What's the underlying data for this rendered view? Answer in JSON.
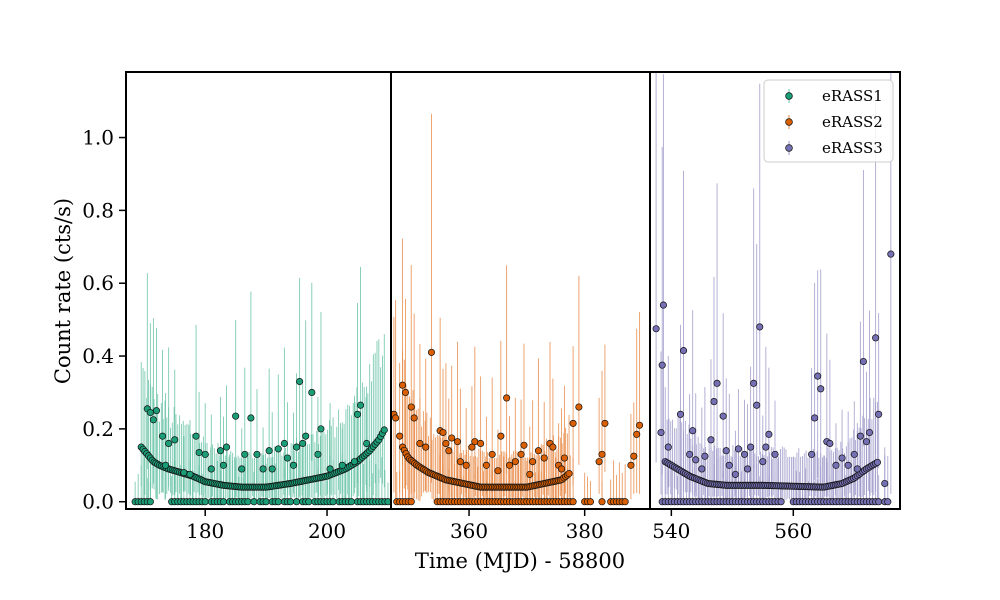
{
  "chart_data": {
    "type": "scatter",
    "title": "",
    "xlabel": "Time (MJD) - 58800",
    "ylabel": "Count rate (cts/s)",
    "ylim": [
      -0.02,
      1.18
    ],
    "yticks": [
      0.0,
      0.2,
      0.4,
      0.6,
      0.8,
      1.0
    ],
    "ytick_labels": [
      "0.0",
      "0.2",
      "0.4",
      "0.6",
      "0.8",
      "1.0"
    ],
    "grid": false,
    "legend": {
      "position": "top-right",
      "entries": [
        "eRASS1",
        "eRASS2",
        "eRASS3"
      ]
    },
    "panels": [
      {
        "series_index": 0,
        "xlim": [
          167,
          210.5
        ],
        "xticks": [
          180,
          200
        ],
        "xtick_labels": [
          "180",
          "200"
        ]
      },
      {
        "series_index": 1,
        "xlim": [
          346.5,
          391.3
        ],
        "xticks": [
          360,
          380
        ],
        "xtick_labels": [
          "360",
          "380"
        ]
      },
      {
        "series_index": 2,
        "xlim": [
          536.5,
          577.5
        ],
        "xticks": [
          540,
          560
        ],
        "xtick_labels": [
          "540",
          "560"
        ]
      }
    ],
    "series": [
      {
        "name": "eRASS1",
        "color": "#1b9e77",
        "errcolor": "#66c2a5",
        "anchors": [
          [
            169.5,
            0.15
          ],
          [
            170.5,
            0.13
          ],
          [
            171.5,
            0.11
          ],
          [
            172.5,
            0.1
          ],
          [
            174.0,
            0.09
          ],
          [
            176.0,
            0.08
          ],
          [
            178.0,
            0.07
          ],
          [
            180.0,
            0.055
          ],
          [
            183.0,
            0.045
          ],
          [
            186.0,
            0.04
          ],
          [
            190.0,
            0.04
          ],
          [
            194.0,
            0.05
          ],
          [
            197.0,
            0.06
          ],
          [
            200.0,
            0.07
          ],
          [
            203.0,
            0.09
          ],
          [
            205.0,
            0.11
          ],
          [
            207.0,
            0.14
          ],
          [
            208.5,
            0.17
          ],
          [
            209.5,
            0.2
          ]
        ],
        "anchor_range": [
          169.5,
          209.5
        ],
        "anchor_step": 0.3,
        "zero_points": [
          168.5,
          169.0,
          169.5,
          170.0,
          170.5,
          171.0,
          174.5,
          175.0,
          175.5,
          176.0,
          176.5,
          177.0,
          177.5,
          178.0,
          178.5,
          179.0,
          179.5,
          180.0,
          181.0,
          181.5,
          182.0,
          182.5,
          183.0,
          184.0,
          184.5,
          185.0,
          185.5,
          186.0,
          186.5,
          187.0,
          188.0,
          189.0,
          189.5,
          190.0,
          191.0,
          191.5,
          192.0,
          193.0,
          193.5,
          194.0,
          195.0,
          196.0,
          196.5,
          197.0,
          198.0,
          198.5,
          199.0,
          199.5,
          200.0,
          200.5,
          201.0,
          202.0,
          202.5,
          203.0,
          203.5,
          204.0,
          205.0,
          205.5,
          206.0,
          206.5,
          207.0,
          207.5,
          208.0,
          208.5,
          209.0,
          209.5,
          210.0
        ],
        "scatter_points": [
          [
            170.5,
            0.255
          ],
          [
            171.0,
            0.245
          ],
          [
            171.5,
            0.225
          ],
          [
            172.0,
            0.25
          ],
          [
            173.0,
            0.18
          ],
          [
            173.5,
            0.1
          ],
          [
            174.0,
            0.16
          ],
          [
            175.0,
            0.17
          ],
          [
            176.5,
            0.08
          ],
          [
            177.5,
            0.075
          ],
          [
            178.5,
            0.18
          ],
          [
            179.0,
            0.135
          ],
          [
            180.0,
            0.13
          ],
          [
            181.0,
            0.09
          ],
          [
            182.5,
            0.14
          ],
          [
            183.0,
            0.1
          ],
          [
            183.5,
            0.15
          ],
          [
            185.0,
            0.235
          ],
          [
            186.0,
            0.09
          ],
          [
            186.5,
            0.13
          ],
          [
            187.5,
            0.23
          ],
          [
            188.5,
            0.13
          ],
          [
            189.5,
            0.09
          ],
          [
            190.5,
            0.14
          ],
          [
            191.0,
            0.09
          ],
          [
            192.0,
            0.145
          ],
          [
            193.0,
            0.16
          ],
          [
            193.5,
            0.12
          ],
          [
            194.5,
            0.1
          ],
          [
            195.0,
            0.15
          ],
          [
            195.5,
            0.33
          ],
          [
            196.0,
            0.16
          ],
          [
            196.5,
            0.18
          ],
          [
            197.5,
            0.3
          ],
          [
            198.5,
            0.13
          ],
          [
            199.0,
            0.2
          ],
          [
            200.5,
            0.09
          ],
          [
            202.5,
            0.1
          ],
          [
            204.5,
            0.11
          ],
          [
            205.0,
            0.24
          ],
          [
            205.5,
            0.265
          ],
          [
            206.5,
            0.16
          ]
        ]
      },
      {
        "name": "eRASS2",
        "color": "#d95f02",
        "errcolor": "#e88a46",
        "anchors": [
          [
            348.5,
            0.15
          ],
          [
            349.5,
            0.12
          ],
          [
            351.0,
            0.1
          ],
          [
            353.0,
            0.08
          ],
          [
            356.0,
            0.06
          ],
          [
            359.0,
            0.05
          ],
          [
            362.0,
            0.04
          ],
          [
            366.0,
            0.04
          ],
          [
            370.0,
            0.04
          ],
          [
            373.0,
            0.05
          ],
          [
            376.0,
            0.06
          ],
          [
            377.5,
            0.08
          ]
        ],
        "anchor_range": [
          348.5,
          377.5
        ],
        "anchor_step": 0.3,
        "zero_points": [
          347.5,
          348.0,
          348.5,
          349.0,
          349.5,
          350.0,
          354.5,
          355.0,
          355.5,
          356.0,
          356.5,
          357.0,
          357.5,
          358.0,
          358.5,
          359.0,
          359.5,
          360.0,
          360.5,
          361.0,
          361.5,
          362.0,
          362.5,
          363.0,
          363.5,
          364.0,
          364.5,
          365.0,
          365.5,
          366.0,
          366.5,
          367.0,
          367.5,
          368.0,
          368.5,
          369.0,
          369.5,
          370.0,
          370.5,
          371.0,
          371.5,
          372.0,
          372.5,
          373.0,
          373.5,
          374.0,
          374.5,
          375.0,
          375.5,
          376.0,
          376.5,
          377.0,
          377.5,
          378.0,
          380.0,
          380.5,
          381.0,
          383.0,
          384.5,
          385.0,
          385.5,
          386.0,
          386.5,
          387.0
        ],
        "scatter_points": [
          [
            347.0,
            0.24
          ],
          [
            347.3,
            0.23
          ],
          [
            348.0,
            0.18
          ],
          [
            348.5,
            0.32
          ],
          [
            349.0,
            0.3
          ],
          [
            350.0,
            0.26
          ],
          [
            350.5,
            0.23
          ],
          [
            351.5,
            0.16
          ],
          [
            352.5,
            0.15
          ],
          [
            353.5,
            0.41
          ],
          [
            355.0,
            0.195
          ],
          [
            355.5,
            0.19
          ],
          [
            356.0,
            0.16
          ],
          [
            356.5,
            0.14
          ],
          [
            357.0,
            0.175
          ],
          [
            358.0,
            0.165
          ],
          [
            358.5,
            0.11
          ],
          [
            359.5,
            0.1
          ],
          [
            360.5,
            0.15
          ],
          [
            361.0,
            0.165
          ],
          [
            362.0,
            0.16
          ],
          [
            363.0,
            0.1
          ],
          [
            364.0,
            0.13
          ],
          [
            365.0,
            0.085
          ],
          [
            365.5,
            0.18
          ],
          [
            366.5,
            0.285
          ],
          [
            367.0,
            0.1
          ],
          [
            368.0,
            0.11
          ],
          [
            369.0,
            0.13
          ],
          [
            369.5,
            0.155
          ],
          [
            370.5,
            0.075
          ],
          [
            371.0,
            0.11
          ],
          [
            372.0,
            0.14
          ],
          [
            373.0,
            0.12
          ],
          [
            374.0,
            0.16
          ],
          [
            374.5,
            0.15
          ],
          [
            375.5,
            0.1
          ],
          [
            376.0,
            0.09
          ],
          [
            376.5,
            0.12
          ],
          [
            378.0,
            0.215
          ],
          [
            379.0,
            0.26
          ],
          [
            382.5,
            0.11
          ],
          [
            383.0,
            0.13
          ],
          [
            383.5,
            0.215
          ],
          [
            388.0,
            0.1
          ],
          [
            388.5,
            0.125
          ],
          [
            389.0,
            0.185
          ],
          [
            389.5,
            0.21
          ]
        ]
      },
      {
        "name": "eRASS3",
        "color": "#7570b3",
        "errcolor": "#9d99c9",
        "anchors": [
          [
            539.0,
            0.11
          ],
          [
            541.0,
            0.09
          ],
          [
            543.0,
            0.07
          ],
          [
            546.0,
            0.05
          ],
          [
            549.0,
            0.045
          ],
          [
            552.0,
            0.045
          ],
          [
            555.0,
            0.045
          ],
          [
            565.0,
            0.04
          ],
          [
            568.0,
            0.05
          ],
          [
            570.0,
            0.065
          ],
          [
            572.0,
            0.09
          ],
          [
            574.0,
            0.11
          ]
        ],
        "anchor_range": [
          539.0,
          574.0
        ],
        "anchor_step": 0.3,
        "zero_points": [
          538.5,
          539.0,
          539.5,
          540.0,
          540.5,
          541.0,
          541.5,
          542.0,
          542.5,
          543.0,
          543.5,
          544.0,
          544.5,
          545.0,
          545.5,
          546.0,
          546.5,
          547.0,
          547.5,
          548.0,
          548.5,
          549.0,
          549.5,
          550.0,
          550.5,
          551.0,
          551.5,
          552.0,
          552.5,
          553.0,
          553.5,
          554.0,
          554.5,
          555.0,
          555.5,
          556.0,
          556.5,
          557.0,
          557.5,
          558.0,
          560.0,
          560.5,
          561.0,
          561.5,
          562.0,
          562.5,
          563.0,
          563.5,
          564.0,
          564.5,
          565.0,
          565.5,
          566.0,
          566.5,
          567.0,
          567.5,
          568.0,
          568.5,
          569.0,
          569.5,
          570.0,
          570.5,
          571.0,
          571.5,
          572.0,
          572.5,
          573.0,
          573.5,
          574.0,
          575.0,
          575.5
        ],
        "scatter_points": [
          [
            537.5,
            0.475
          ],
          [
            538.3,
            0.19
          ],
          [
            538.7,
            0.54
          ],
          [
            538.5,
            0.375
          ],
          [
            539.5,
            0.15
          ],
          [
            541.5,
            0.24
          ],
          [
            542.0,
            0.415
          ],
          [
            543.0,
            0.13
          ],
          [
            543.5,
            0.195
          ],
          [
            544.0,
            0.115
          ],
          [
            545.0,
            0.09
          ],
          [
            545.5,
            0.125
          ],
          [
            546.5,
            0.17
          ],
          [
            547.0,
            0.275
          ],
          [
            547.5,
            0.325
          ],
          [
            548.5,
            0.235
          ],
          [
            549.0,
            0.14
          ],
          [
            549.5,
            0.1
          ],
          [
            550.5,
            0.075
          ],
          [
            551.0,
            0.145
          ],
          [
            552.0,
            0.13
          ],
          [
            552.5,
            0.09
          ],
          [
            553.0,
            0.15
          ],
          [
            553.5,
            0.325
          ],
          [
            554.0,
            0.265
          ],
          [
            554.5,
            0.48
          ],
          [
            555.0,
            0.11
          ],
          [
            555.5,
            0.15
          ],
          [
            556.0,
            0.185
          ],
          [
            557.0,
            0.13
          ],
          [
            563.0,
            0.13
          ],
          [
            563.5,
            0.23
          ],
          [
            564.0,
            0.345
          ],
          [
            564.5,
            0.31
          ],
          [
            565.5,
            0.165
          ],
          [
            566.0,
            0.16
          ],
          [
            567.0,
            0.1
          ],
          [
            568.0,
            0.12
          ],
          [
            569.0,
            0.1
          ],
          [
            570.0,
            0.13
          ],
          [
            570.5,
            0.09
          ],
          [
            571.0,
            0.18
          ],
          [
            571.5,
            0.385
          ],
          [
            572.0,
            0.165
          ],
          [
            572.5,
            0.19
          ],
          [
            573.5,
            0.45
          ],
          [
            574.0,
            0.24
          ],
          [
            575.0,
            0.05
          ],
          [
            576.0,
            0.68
          ]
        ]
      }
    ]
  }
}
